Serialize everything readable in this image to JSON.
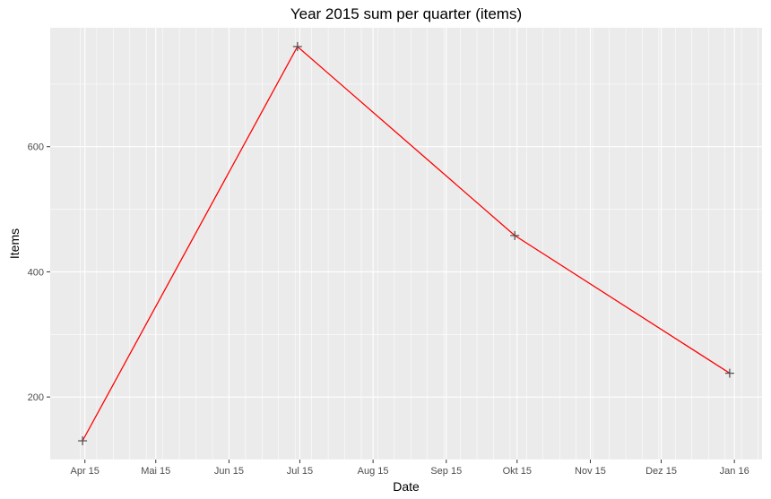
{
  "chart_data": {
    "type": "line",
    "title": "Year 2015 sum per quarter (items)",
    "xlabel": "Date",
    "ylabel": "Items",
    "x_ticks": [
      "Apr 15",
      "Mai 15",
      "Jun 15",
      "Jul 15",
      "Aug 15",
      "Sep 15",
      "Okt 15",
      "Nov 15",
      "Dez 15",
      "Jan 16"
    ],
    "y_ticks": [
      200,
      400,
      600
    ],
    "ylim": [
      100,
      790
    ],
    "grid": true,
    "series": [
      {
        "x": [
          "Mar 31",
          "Jun 30",
          "Sep 30",
          "Dez 30"
        ],
        "values": [
          130,
          760,
          458,
          238
        ]
      }
    ],
    "colors": {
      "line": "#ff0000",
      "point": "#4d4d4d",
      "panel": "#ebebeb",
      "grid": "#ffffff"
    }
  }
}
